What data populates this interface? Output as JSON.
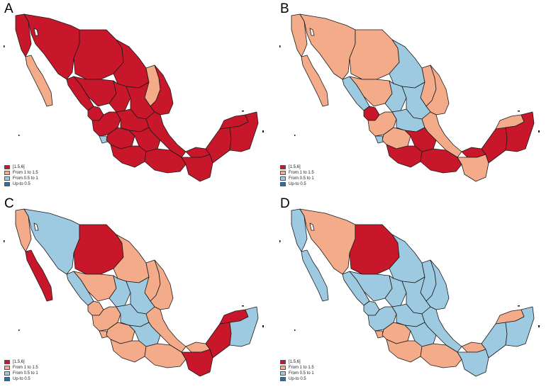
{
  "colors": {
    "c1": "#c8172a",
    "c2": "#f4ab89",
    "c3": "#9ecae1",
    "c4": "#2171b5",
    "border": "#1a1a1a"
  },
  "legend": [
    {
      "label": "[1.5,6]",
      "color_key": "c1"
    },
    {
      "label": "From 1 to 1.5",
      "color_key": "c2"
    },
    {
      "label": "From 0.5 to 1",
      "color_key": "c3"
    },
    {
      "label": "Up-to 0.5",
      "color_key": "c4"
    }
  ],
  "panels": [
    {
      "letter": "A",
      "states": {
        "baja_california": "c1",
        "baja_california_sur": "c2",
        "sonora": "c1",
        "chihuahua": "c1",
        "coahuila": "c1",
        "nuevo_leon": "c2",
        "tamaulipas": "c1",
        "sinaloa": "c1",
        "durango": "c1",
        "zacatecas": "c1",
        "san_luis_potosi": "c1",
        "nayarit": "c1",
        "jalisco": "c1",
        "colima": "c3",
        "bajio": "c1",
        "veracruz": "c1",
        "michoacan": "c1",
        "central": "c1",
        "guerrero": "c1",
        "oaxaca": "c1",
        "tabasco": "c1",
        "chiapas": "c1",
        "campeche": "c1",
        "yucatan": "c1",
        "quintana_roo": "c1"
      }
    },
    {
      "letter": "B",
      "states": {
        "baja_california": "c2",
        "baja_california_sur": "c2",
        "sonora": "c2",
        "chihuahua": "c2",
        "coahuila": "c3",
        "nuevo_leon": "c2",
        "tamaulipas": "c2",
        "sinaloa": "c3",
        "durango": "c2",
        "zacatecas": "c3",
        "san_luis_potosi": "c3",
        "nayarit": "c1",
        "jalisco": "c2",
        "colima": "c3",
        "bajio": "c3",
        "veracruz": "c2",
        "michoacan": "c2",
        "central": "c1",
        "guerrero": "c1",
        "oaxaca": "c1",
        "tabasco": "c1",
        "chiapas": "c2",
        "campeche": "c1",
        "yucatan": "c2",
        "quintana_roo": "c1"
      }
    },
    {
      "letter": "C",
      "states": {
        "baja_california": "c2",
        "baja_california_sur": "c1",
        "sonora": "c3",
        "chihuahua": "c1",
        "coahuila": "c2",
        "nuevo_leon": "c2",
        "tamaulipas": "c2",
        "sinaloa": "c3",
        "durango": "c2",
        "zacatecas": "c3",
        "san_luis_potosi": "c3",
        "nayarit": "c2",
        "jalisco": "c2",
        "colima": "c2",
        "bajio": "c3",
        "veracruz": "c2",
        "michoacan": "c2",
        "central": "c3",
        "guerrero": "c2",
        "oaxaca": "c2",
        "tabasco": "c2",
        "chiapas": "c1",
        "campeche": "c1",
        "yucatan": "c1",
        "quintana_roo": "c3"
      }
    },
    {
      "letter": "D",
      "states": {
        "baja_california": "c3",
        "baja_california_sur": "c3",
        "sonora": "c2",
        "chihuahua": "c1",
        "coahuila": "c3",
        "nuevo_leon": "c3",
        "tamaulipas": "c3",
        "sinaloa": "c3",
        "durango": "c3",
        "zacatecas": "c3",
        "san_luis_potosi": "c3",
        "nayarit": "c3",
        "jalisco": "c3",
        "colima": "c2",
        "bajio": "c3",
        "veracruz": "c3",
        "michoacan": "c2",
        "central": "c3",
        "guerrero": "c2",
        "oaxaca": "c2",
        "tabasco": "c2",
        "chiapas": "c3",
        "campeche": "c3",
        "yucatan": "c2",
        "quintana_roo": "c3"
      }
    }
  ]
}
